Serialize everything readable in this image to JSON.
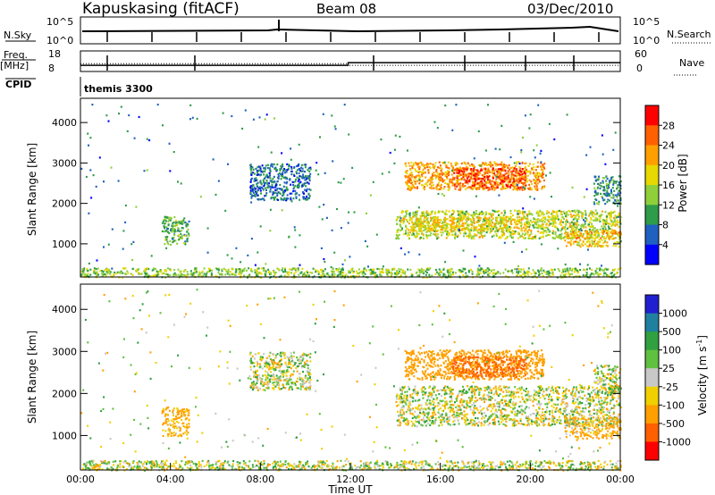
{
  "header": {
    "station": "Kapuskasing (fitACF)",
    "beam": "Beam 08",
    "date": "03/Dec/2010"
  },
  "nsky_panel": {
    "left_label": "N.Sky",
    "left_ticks": [
      "10^5",
      "10^0"
    ],
    "right_label": "N.Search",
    "right_ticks": [
      "10^5",
      "10^0"
    ]
  },
  "freq_panel": {
    "left_label": "Freq.",
    "left_unit": "[MHz]",
    "left_ticks": [
      "18",
      "8"
    ],
    "right_label": "Nave",
    "right_ticks": [
      "60",
      "0"
    ],
    "freq_line": [
      [
        0,
        11.0
      ],
      [
        11.9,
        11.0
      ],
      [
        11.9,
        12.3
      ],
      [
        24,
        12.3
      ]
    ],
    "nave_line": [
      [
        0,
        23
      ],
      [
        11.9,
        23
      ],
      [
        11.9,
        18
      ],
      [
        24,
        18
      ]
    ]
  },
  "cpid": {
    "label": "CPID",
    "name": "themis 3300"
  },
  "colorbars": {
    "power": {
      "label": "Power [dB]",
      "ticks": [
        "28",
        "24",
        "20",
        "16",
        "12",
        "8",
        "4"
      ],
      "colors": [
        "#ff0000",
        "#ff6000",
        "#ffa000",
        "#e6d800",
        "#8fcf3a",
        "#2e9c4a",
        "#2060c0",
        "#0000ff"
      ]
    },
    "velocity": {
      "label": "Velocity [m s",
      "label_sup": "-1",
      "label_close": "]",
      "ticks": [
        "1000",
        "500",
        "100",
        "25",
        "-25",
        "-100",
        "-500",
        "-1000"
      ],
      "colors": [
        "#2020d0",
        "#2080a0",
        "#30a040",
        "#60c040",
        "#c8c8c8",
        "#f0d000",
        "#ffa000",
        "#ff6000",
        "#ff0000"
      ]
    }
  },
  "chart_data": [
    {
      "type": "heatmap",
      "title": "Power",
      "ylabel": "Slant Range [km]",
      "ylim": [
        180,
        4600
      ],
      "xlim": [
        0,
        24
      ],
      "yticks": [
        "4000",
        "3000",
        "2000",
        "1000"
      ],
      "blobs": [
        {
          "t0": 14.0,
          "t1": 24.0,
          "r0": 1150,
          "r1": 1850,
          "power": 16
        },
        {
          "t0": 14.4,
          "t1": 20.6,
          "r0": 2350,
          "r1": 3050,
          "power": 22
        },
        {
          "t0": 16.5,
          "t1": 19.8,
          "r0": 2400,
          "r1": 2900,
          "power": 27
        },
        {
          "t0": 14.6,
          "t1": 19.9,
          "r0": 1350,
          "r1": 1700,
          "power": 19
        },
        {
          "t0": 21.5,
          "t1": 24.0,
          "r0": 950,
          "r1": 1350,
          "power": 20
        },
        {
          "t0": 22.8,
          "t1": 24.0,
          "r0": 2000,
          "r1": 2700,
          "power": 9
        },
        {
          "t0": 7.5,
          "t1": 10.2,
          "r0": 2100,
          "r1": 3000,
          "power": 7
        },
        {
          "t0": 3.6,
          "t1": 4.8,
          "r0": 1000,
          "r1": 1700,
          "power": 12
        },
        {
          "t0": 0.0,
          "t1": 24.0,
          "r0": 190,
          "r1": 420,
          "power": 14
        }
      ]
    },
    {
      "type": "heatmap",
      "title": "Velocity",
      "ylabel": "Slant Range [km]",
      "ylim": [
        180,
        4600
      ],
      "xlim": [
        0,
        24
      ],
      "yticks": [
        "4000",
        "3000",
        "2000",
        "1000"
      ],
      "xticks": [
        "00:00",
        "04:00",
        "08:00",
        "12:00",
        "16:00",
        "20:00",
        "00:00"
      ],
      "xlabel": "Time UT",
      "blobs": [
        {
          "t0": 14.0,
          "t1": 24.0,
          "r0": 1250,
          "r1": 2200,
          "velocity": 0
        },
        {
          "t0": 14.4,
          "t1": 20.6,
          "r0": 2350,
          "r1": 3050,
          "velocity": -300
        },
        {
          "t0": 16.5,
          "t1": 19.8,
          "r0": 2400,
          "r1": 2900,
          "velocity": -600
        },
        {
          "t0": 21.5,
          "t1": 24.0,
          "r0": 950,
          "r1": 1450,
          "velocity": -150
        },
        {
          "t0": 22.8,
          "t1": 24.0,
          "r0": 2000,
          "r1": 2700,
          "velocity": 0
        },
        {
          "t0": 7.5,
          "t1": 10.2,
          "r0": 2100,
          "r1": 3000,
          "velocity": 0
        },
        {
          "t0": 3.6,
          "t1": 4.8,
          "r0": 1000,
          "r1": 1700,
          "velocity": -150
        },
        {
          "t0": 0.0,
          "t1": 24.0,
          "r0": 190,
          "r1": 420,
          "velocity": 0
        }
      ]
    }
  ]
}
